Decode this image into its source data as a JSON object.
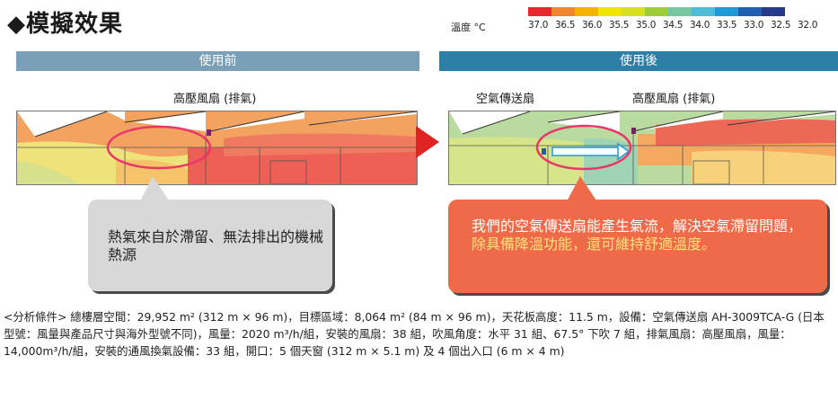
{
  "title": "◆模擬效果",
  "legend": {
    "label": "溫度 °C",
    "colors": [
      "#e8262c",
      "#f2862e",
      "#f6b400",
      "#f2e500",
      "#d6e01e",
      "#9fcd3a",
      "#74c8a0",
      "#4fbcd7",
      "#1e9ad8",
      "#1e5fb0",
      "#253a88"
    ],
    "values": [
      "37.0",
      "36.5",
      "36.0",
      "35.5",
      "35.0",
      "34.5",
      "34.0",
      "33.5",
      "33.0",
      "32.5",
      "32.0"
    ]
  },
  "before": {
    "header": "使用前",
    "exhaust_label": "高壓風扇 (排氣)",
    "callout": "熱氣來自於滯留、無法排出的機械熱源"
  },
  "after": {
    "header": "使用後",
    "circulator_label": "空氣傳送扇",
    "exhaust_label": "高壓風扇 (排氣)",
    "callout_part1": "我們的空氣傳送扇能產生氣流，解決空氣滯留問題，",
    "callout_part2": "除具備降溫功能，還可維持舒適溫度。"
  },
  "notes": "<分析條件> 總樓層空間：29,952 m² (312 m × 96 m)，目標區域：8,064 m² (84 m × 96 m)，天花板高度：11.5 m，設備：空氣傳送扇 AH-3009TCA-G (日本型號：風量與產品尺寸與海外型號不同)，風量：2020 m³/h/組，安裝的風扇：38 組，吹風角度：水平 31 組、67.5° 下吹 7 組，排氣風扇：高壓風扇，風量：14,000m³/h/組，安裝的通風換氣設備：33 組，開口：5 個天窗 (312 m × 5.1 m) 及 4 個出入口 (6 m × 4 m)"
}
